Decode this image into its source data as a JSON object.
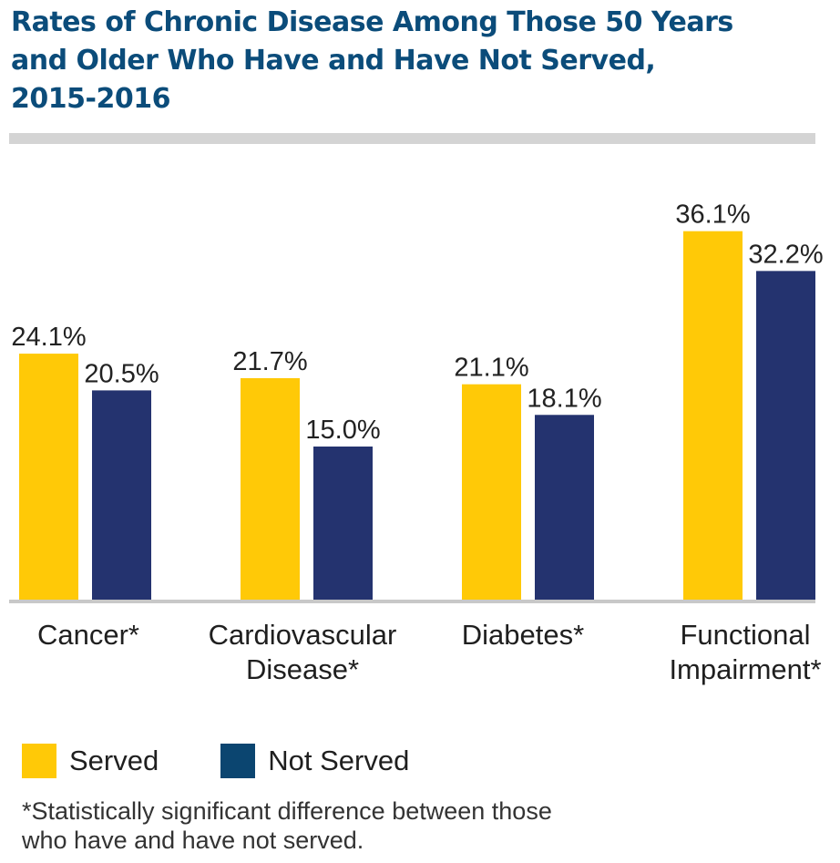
{
  "header": {
    "title_lines": [
      "Rates of Chronic Disease Among Those 50 Years",
      "and Older Who Have and Have Not Served,",
      "2015-2016"
    ]
  },
  "colors": {
    "served": "#ffc907",
    "not_served": "#24336f",
    "legend_not_served": "#0b4570",
    "title": "#0b4c7a",
    "rule": "#d4d4d4",
    "baseline": "#c8c8c8"
  },
  "chart_data": {
    "type": "bar",
    "title": "Rates of Chronic Disease Among Those 50 Years and Older Who Have and Have Not Served, 2015-2016",
    "categories": [
      [
        "Cancer*"
      ],
      [
        "Cardiovascular",
        "Disease*"
      ],
      [
        "Diabetes*"
      ],
      [
        "Functional",
        "Impairment*"
      ]
    ],
    "series": [
      {
        "name": "Served",
        "values": [
          24.1,
          21.7,
          21.1,
          36.1
        ],
        "labels": [
          "24.1%",
          "21.7%",
          "21.1%",
          "36.1%"
        ]
      },
      {
        "name": "Not Served",
        "values": [
          20.5,
          15.0,
          18.1,
          32.2
        ],
        "labels": [
          "20.5%",
          "15.0%",
          "18.1%",
          "32.2%"
        ]
      }
    ],
    "ylim": [
      0,
      40
    ],
    "xlabel": "",
    "ylabel": "",
    "grid": false,
    "legend": "bottom-left"
  },
  "legend": {
    "items": [
      {
        "label": "Served"
      },
      {
        "label": "Not Served"
      }
    ]
  },
  "footnote": {
    "lines": [
      "*Statistically significant difference between those",
      "who have and have not served."
    ]
  }
}
